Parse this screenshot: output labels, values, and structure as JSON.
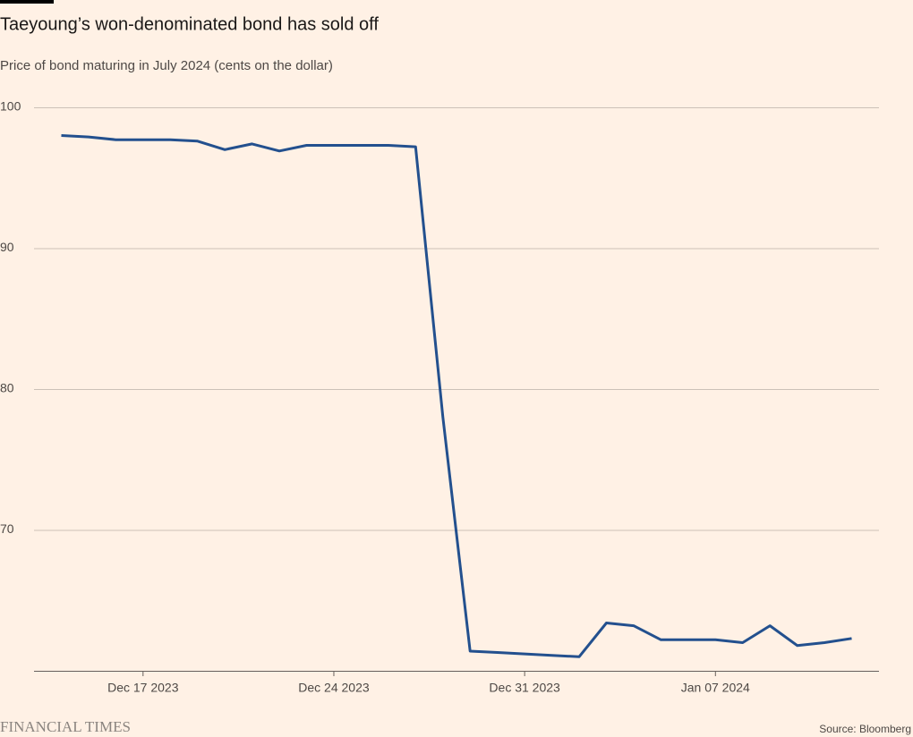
{
  "chart_data": {
    "type": "line",
    "title": "Taeyoung’s won-denominated bond has sold off",
    "subtitle": "Price of bond maturing in July 2024 (cents on the dollar)",
    "brand": "FINANCIAL TIMES",
    "source": "Source: Bloomberg",
    "x": [
      "2023-12-14",
      "2023-12-15",
      "2023-12-16",
      "2023-12-17",
      "2023-12-18",
      "2023-12-19",
      "2023-12-20",
      "2023-12-21",
      "2023-12-22",
      "2023-12-23",
      "2023-12-24",
      "2023-12-25",
      "2023-12-26",
      "2023-12-27",
      "2023-12-28",
      "2023-12-29",
      "2023-12-30",
      "2023-12-31",
      "2024-01-01",
      "2024-01-02",
      "2024-01-03",
      "2024-01-04",
      "2024-01-05",
      "2024-01-06",
      "2024-01-07",
      "2024-01-08",
      "2024-01-09",
      "2024-01-10",
      "2024-01-11",
      "2024-01-12"
    ],
    "series": [
      {
        "name": "Price",
        "color": "#23508e",
        "values": [
          98.0,
          97.9,
          97.7,
          97.7,
          97.7,
          97.6,
          97.0,
          97.4,
          96.9,
          97.3,
          97.3,
          97.3,
          97.3,
          97.2,
          78,
          61.4,
          61.3,
          61.2,
          61.1,
          61.0,
          63.4,
          63.2,
          62.2,
          62.2,
          62.2,
          62.0,
          63.2,
          61.8,
          62.0,
          62.3
        ]
      }
    ],
    "xlim": [
      "2023-12-13",
      "2024-01-13"
    ],
    "xticks": [
      {
        "value": "2023-12-17",
        "label": "Dec 17 2023"
      },
      {
        "value": "2023-12-24",
        "label": "Dec 24 2023"
      },
      {
        "value": "2023-12-31",
        "label": "Dec 31 2023"
      },
      {
        "value": "2024-01-07",
        "label": "Jan 07 2024"
      }
    ],
    "ylim": [
      60,
      100
    ],
    "yticks": [
      70,
      80,
      90,
      100
    ],
    "grid": true
  }
}
